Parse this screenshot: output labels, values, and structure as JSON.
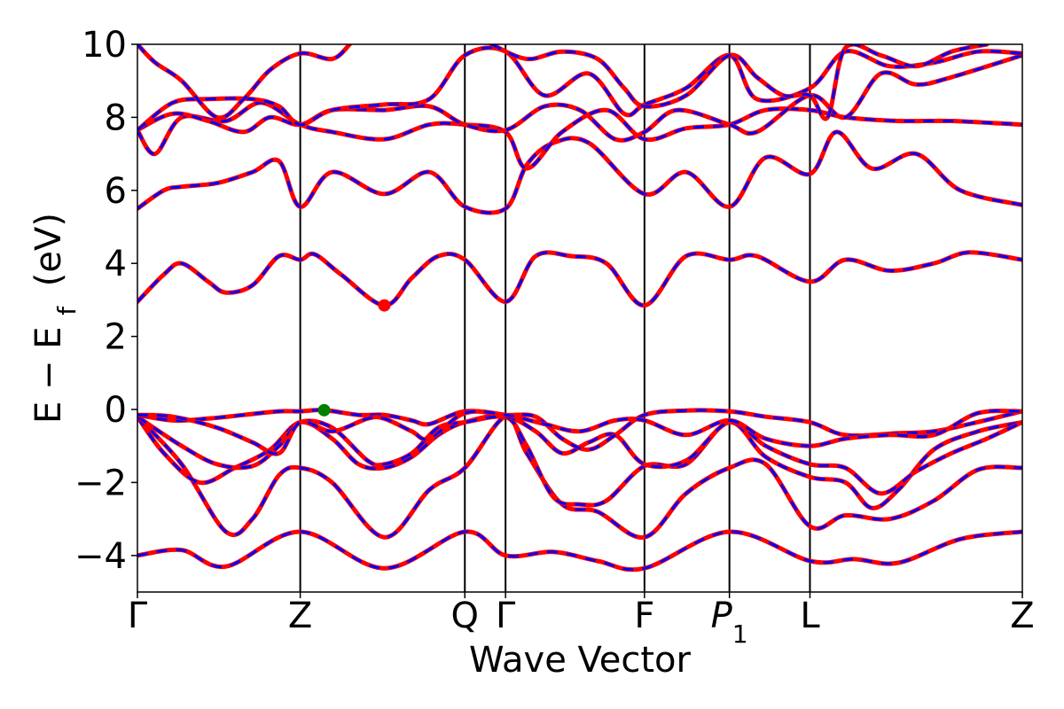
{
  "chart_data": {
    "type": "line",
    "title": "",
    "xlabel": "Wave Vector",
    "ylabel": "E − E",
    "ylabel_subscript": "f",
    "ylabel_unit": "(eV)",
    "ylim": [
      -5,
      10
    ],
    "yticks": [
      -4,
      -2,
      0,
      2,
      4,
      6,
      8,
      10
    ],
    "ytick_labels": [
      "−4",
      "−2",
      "0",
      "2",
      "4",
      "6",
      "8",
      "10"
    ],
    "xlim": [
      0,
      100
    ],
    "kpoints": [
      {
        "label": "Γ",
        "x": 0
      },
      {
        "label": "Z",
        "x": 18.4
      },
      {
        "label": "Q",
        "x": 37.0
      },
      {
        "label": "Γ",
        "x": 41.6
      },
      {
        "label": "F",
        "x": 57.3
      },
      {
        "label": "P",
        "sub": "1",
        "x": 66.9
      },
      {
        "label": "L",
        "x": 76.0
      },
      {
        "label": "Z",
        "x": 100
      }
    ],
    "line_colors": {
      "primary": "#ff0000",
      "secondary": "#0000ff"
    },
    "marker_colors": {
      "cbm": "#ff0000",
      "vbm": "#008000"
    },
    "markers": [
      {
        "name": "cbm",
        "x": 27.9,
        "y": 2.85
      },
      {
        "name": "vbm",
        "x": 21.1,
        "y": -0.02
      }
    ],
    "bands": [
      {
        "name": "band-1",
        "points": [
          [
            0,
            -4.0
          ],
          [
            5,
            -3.85
          ],
          [
            10,
            -4.3
          ],
          [
            18.4,
            -3.35
          ],
          [
            27.9,
            -4.35
          ],
          [
            37,
            -3.35
          ],
          [
            41.6,
            -4.0
          ],
          [
            47,
            -3.9
          ],
          [
            52,
            -4.15
          ],
          [
            57.3,
            -4.35
          ],
          [
            66.9,
            -3.35
          ],
          [
            76,
            -4.15
          ],
          [
            81,
            -4.1
          ],
          [
            86,
            -4.2
          ],
          [
            93,
            -3.55
          ],
          [
            100,
            -3.35
          ]
        ]
      },
      {
        "name": "band-2",
        "points": [
          [
            0,
            -0.2
          ],
          [
            5,
            -1.5
          ],
          [
            10,
            -3.35
          ],
          [
            13,
            -3.0
          ],
          [
            16,
            -1.8
          ],
          [
            18.4,
            -1.6
          ],
          [
            22,
            -2.0
          ],
          [
            27.9,
            -3.5
          ],
          [
            33,
            -2.2
          ],
          [
            37,
            -1.6
          ],
          [
            41.6,
            -0.2
          ],
          [
            44,
            -1.2
          ],
          [
            48,
            -2.6
          ],
          [
            52,
            -2.8
          ],
          [
            57.3,
            -3.5
          ],
          [
            62,
            -2.3
          ],
          [
            66.9,
            -1.6
          ],
          [
            71,
            -1.5
          ],
          [
            76,
            -3.2
          ],
          [
            80,
            -2.9
          ],
          [
            85,
            -3.0
          ],
          [
            90,
            -2.5
          ],
          [
            95,
            -1.65
          ],
          [
            100,
            -1.6
          ]
        ]
      },
      {
        "name": "band-3",
        "points": [
          [
            0,
            -0.2
          ],
          [
            3,
            -1.2
          ],
          [
            7,
            -2.0
          ],
          [
            11,
            -1.6
          ],
          [
            15,
            -1.1
          ],
          [
            18.4,
            -0.35
          ],
          [
            22,
            -0.8
          ],
          [
            25,
            -1.5
          ],
          [
            27.9,
            -1.6
          ],
          [
            31,
            -1.3
          ],
          [
            34,
            -0.7
          ],
          [
            37,
            -0.35
          ],
          [
            41.6,
            -0.2
          ],
          [
            44,
            -1.0
          ],
          [
            47,
            -2.4
          ],
          [
            50,
            -2.6
          ],
          [
            53,
            -2.5
          ],
          [
            57.3,
            -1.55
          ],
          [
            62,
            -1.5
          ],
          [
            66.9,
            -0.35
          ],
          [
            71,
            -1.3
          ],
          [
            76,
            -1.85
          ],
          [
            80,
            -2.0
          ],
          [
            83,
            -2.7
          ],
          [
            86,
            -2.2
          ],
          [
            90,
            -1.1
          ],
          [
            95,
            -0.6
          ],
          [
            100,
            -0.35
          ]
        ]
      },
      {
        "name": "band-4",
        "points": [
          [
            0,
            -0.2
          ],
          [
            5,
            -1.0
          ],
          [
            9,
            -1.5
          ],
          [
            13,
            -1.55
          ],
          [
            16,
            -1.0
          ],
          [
            18.4,
            -0.35
          ],
          [
            22,
            -0.5
          ],
          [
            26,
            -1.4
          ],
          [
            27.9,
            -1.5
          ],
          [
            31,
            -1.2
          ],
          [
            34,
            -0.5
          ],
          [
            37,
            -0.35
          ],
          [
            41.6,
            -0.2
          ],
          [
            45,
            -0.6
          ],
          [
            48,
            -1.2
          ],
          [
            51,
            -0.9
          ],
          [
            54,
            -0.7
          ],
          [
            57.3,
            -1.5
          ],
          [
            62,
            -1.4
          ],
          [
            66.9,
            -0.35
          ],
          [
            71,
            -1.0
          ],
          [
            76,
            -1.5
          ],
          [
            80,
            -1.6
          ],
          [
            84,
            -2.3
          ],
          [
            88,
            -1.7
          ],
          [
            92,
            -1.2
          ],
          [
            96,
            -0.8
          ],
          [
            100,
            -0.35
          ]
        ]
      },
      {
        "name": "band-5",
        "points": [
          [
            0,
            -0.15
          ],
          [
            4,
            -0.3
          ],
          [
            8,
            -0.25
          ],
          [
            12,
            -0.15
          ],
          [
            16,
            -0.05
          ],
          [
            18.4,
            -0.05
          ],
          [
            21.1,
            -0.02
          ],
          [
            25,
            -0.15
          ],
          [
            27.9,
            -0.15
          ],
          [
            31,
            -0.3
          ],
          [
            33,
            -0.4
          ],
          [
            37,
            -0.05
          ],
          [
            41.6,
            -0.15
          ],
          [
            45,
            -0.2
          ],
          [
            48,
            -0.8
          ],
          [
            51,
            -1.1
          ],
          [
            54,
            -0.7
          ],
          [
            57.3,
            -0.15
          ],
          [
            62,
            -0.03
          ],
          [
            66.9,
            -0.05
          ],
          [
            71,
            -0.2
          ],
          [
            76,
            -0.35
          ],
          [
            80,
            -0.7
          ],
          [
            86,
            -0.65
          ],
          [
            90,
            -0.6
          ],
          [
            94,
            -0.4
          ],
          [
            100,
            -0.05
          ]
        ]
      },
      {
        "name": "band-6",
        "points": [
          [
            0,
            -0.15
          ],
          [
            4,
            -0.2
          ],
          [
            9,
            -0.5
          ],
          [
            13,
            -0.9
          ],
          [
            16,
            -1.2
          ],
          [
            18.4,
            -0.35
          ],
          [
            22,
            -0.6
          ],
          [
            26,
            -0.25
          ],
          [
            27.9,
            -0.25
          ],
          [
            31,
            -0.6
          ],
          [
            33,
            -0.8
          ],
          [
            37,
            -0.1
          ],
          [
            41.6,
            -0.15
          ],
          [
            46,
            -0.4
          ],
          [
            50,
            -0.6
          ],
          [
            54,
            -0.3
          ],
          [
            57.3,
            -0.3
          ],
          [
            62,
            -0.7
          ],
          [
            66.9,
            -0.3
          ],
          [
            71,
            -0.8
          ],
          [
            76,
            -1.0
          ],
          [
            80,
            -0.8
          ],
          [
            85,
            -0.7
          ],
          [
            90,
            -0.7
          ],
          [
            95,
            -0.1
          ],
          [
            100,
            -0.05
          ]
        ]
      },
      {
        "name": "band-7",
        "points": [
          [
            0,
            2.95
          ],
          [
            3,
            3.7
          ],
          [
            5,
            4.0
          ],
          [
            8,
            3.5
          ],
          [
            10,
            3.2
          ],
          [
            13,
            3.4
          ],
          [
            16,
            4.2
          ],
          [
            18.4,
            4.1
          ],
          [
            20,
            4.25
          ],
          [
            23,
            3.7
          ],
          [
            27.9,
            2.85
          ],
          [
            31,
            3.6
          ],
          [
            34,
            4.2
          ],
          [
            37,
            4.1
          ],
          [
            41.6,
            2.95
          ],
          [
            45,
            4.2
          ],
          [
            49,
            4.2
          ],
          [
            53,
            4.0
          ],
          [
            57.3,
            2.85
          ],
          [
            62,
            4.2
          ],
          [
            66.9,
            4.1
          ],
          [
            70,
            4.2
          ],
          [
            76,
            3.5
          ],
          [
            80,
            4.1
          ],
          [
            85,
            3.8
          ],
          [
            90,
            4.0
          ],
          [
            94,
            4.3
          ],
          [
            100,
            4.1
          ]
        ]
      },
      {
        "name": "band-8",
        "points": [
          [
            0,
            5.5
          ],
          [
            3,
            6.0
          ],
          [
            5,
            6.1
          ],
          [
            9,
            6.2
          ],
          [
            13,
            6.5
          ],
          [
            16,
            6.8
          ],
          [
            18.4,
            5.55
          ],
          [
            22,
            6.5
          ],
          [
            27.9,
            5.9
          ],
          [
            33,
            6.5
          ],
          [
            37,
            5.55
          ],
          [
            41.6,
            5.5
          ],
          [
            44,
            6.7
          ],
          [
            47,
            7.3
          ],
          [
            51,
            7.3
          ],
          [
            57.3,
            5.9
          ],
          [
            62,
            6.5
          ],
          [
            66.9,
            5.55
          ],
          [
            71,
            6.9
          ],
          [
            76,
            6.45
          ],
          [
            79,
            7.6
          ],
          [
            83,
            6.6
          ],
          [
            88,
            7.0
          ],
          [
            93,
            6.0
          ],
          [
            100,
            5.6
          ]
        ]
      },
      {
        "name": "band-9",
        "points": [
          [
            0,
            7.65
          ],
          [
            2,
            7.0
          ],
          [
            5,
            8.0
          ],
          [
            10,
            7.9
          ],
          [
            14,
            8.4
          ],
          [
            18.4,
            7.8
          ],
          [
            22,
            7.6
          ],
          [
            27.9,
            7.4
          ],
          [
            33,
            7.8
          ],
          [
            37,
            7.8
          ],
          [
            41.6,
            7.6
          ],
          [
            44,
            6.6
          ],
          [
            48,
            7.6
          ],
          [
            53,
            8.2
          ],
          [
            57.3,
            7.4
          ],
          [
            62,
            7.7
          ],
          [
            66.9,
            7.8
          ],
          [
            71,
            8.2
          ],
          [
            76,
            8.2
          ],
          [
            80,
            8.0
          ],
          [
            86,
            7.9
          ],
          [
            92,
            7.9
          ],
          [
            100,
            7.8
          ]
        ]
      },
      {
        "name": "band-10",
        "points": [
          [
            0,
            7.65
          ],
          [
            4,
            8.1
          ],
          [
            8,
            7.9
          ],
          [
            12,
            7.6
          ],
          [
            15,
            8.0
          ],
          [
            18.4,
            7.8
          ],
          [
            22,
            8.2
          ],
          [
            27.9,
            8.2
          ],
          [
            33,
            8.3
          ],
          [
            37,
            7.8
          ],
          [
            41.6,
            7.65
          ],
          [
            46,
            8.3
          ],
          [
            50,
            8.2
          ],
          [
            54,
            7.4
          ],
          [
            57.3,
            7.6
          ],
          [
            61,
            8.2
          ],
          [
            66.9,
            7.8
          ],
          [
            70,
            7.6
          ],
          [
            76,
            8.6
          ],
          [
            80,
            8.0
          ],
          [
            84,
            9.2
          ],
          [
            88,
            8.9
          ],
          [
            92,
            9.1
          ],
          [
            100,
            9.7
          ]
        ]
      },
      {
        "name": "band-11",
        "points": [
          [
            0,
            7.65
          ],
          [
            4,
            8.4
          ],
          [
            8,
            8.5
          ],
          [
            13,
            8.5
          ],
          [
            16,
            8.3
          ],
          [
            18.4,
            7.8
          ],
          [
            22,
            8.2
          ],
          [
            27.9,
            8.35
          ],
          [
            33,
            8.5
          ],
          [
            37,
            9.7
          ],
          [
            41.6,
            9.8
          ],
          [
            46,
            8.6
          ],
          [
            51,
            9.2
          ],
          [
            55,
            8.1
          ],
          [
            57.3,
            8.35
          ],
          [
            62,
            8.8
          ],
          [
            66.9,
            9.7
          ],
          [
            70,
            8.5
          ],
          [
            76,
            8.8
          ],
          [
            80,
            9.8
          ],
          [
            85,
            9.4
          ],
          [
            90,
            9.5
          ],
          [
            95,
            9.8
          ],
          [
            100,
            9.75
          ]
        ]
      },
      {
        "name": "band-12",
        "points": [
          [
            0,
            10.0
          ],
          [
            2,
            9.5
          ],
          [
            5,
            9.0
          ],
          [
            9,
            8.0
          ],
          [
            12,
            8.5
          ],
          [
            15,
            9.3
          ],
          [
            18.4,
            9.75
          ],
          [
            22,
            9.6
          ],
          [
            24,
            10.0
          ]
        ]
      },
      {
        "name": "band-13",
        "points": [
          [
            40,
            10.0
          ],
          [
            44,
            9.6
          ],
          [
            48,
            9.8
          ],
          [
            52,
            9.6
          ],
          [
            55,
            8.8
          ],
          [
            57.3,
            8.3
          ],
          [
            62,
            8.6
          ],
          [
            66.9,
            9.7
          ],
          [
            70,
            9.1
          ],
          [
            73,
            8.6
          ],
          [
            76,
            8.6
          ],
          [
            78,
            8.0
          ],
          [
            80,
            9.9
          ],
          [
            84,
            9.7
          ],
          [
            88,
            9.4
          ],
          [
            92,
            9.8
          ],
          [
            96,
            10.0
          ]
        ]
      }
    ]
  }
}
